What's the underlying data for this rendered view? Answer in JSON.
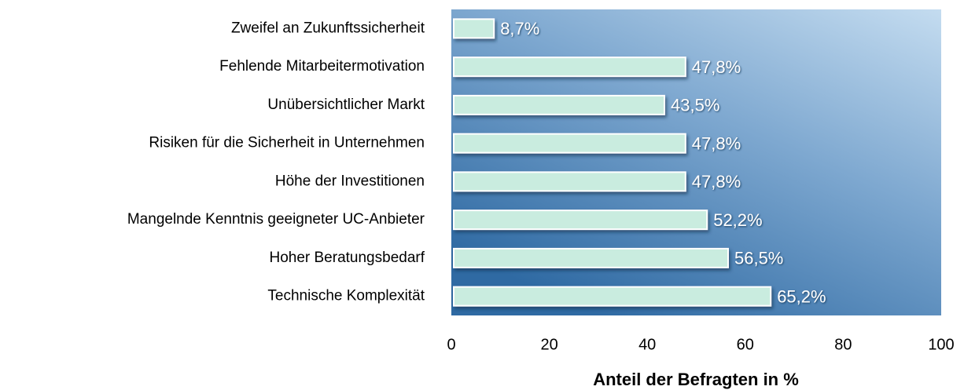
{
  "chart_data": {
    "type": "bar",
    "orientation": "horizontal",
    "xlabel": "Anteil der Befragten in %",
    "categories": [
      "Zweifel an Zukunftssicherheit",
      "Fehlende Mitarbeitermotivation",
      "Unübersichtlicher Markt",
      "Risiken für die Sicherheit in Unternehmen",
      "Höhe der Investitionen",
      "Mangelnde Kenntnis geeigneter UC-Anbieter",
      "Hoher Beratungsbedarf",
      "Technische Komplexität"
    ],
    "values": [
      8.7,
      47.8,
      43.5,
      47.8,
      47.8,
      52.2,
      56.5,
      65.2
    ],
    "value_labels": [
      "8,7%",
      "47,8%",
      "43,5%",
      "47,8%",
      "47,8%",
      "52,2%",
      "56,5%",
      "65,2%"
    ],
    "color": "#c9ecdf",
    "xlim": [
      0,
      100
    ],
    "xticks": [
      0,
      20,
      40,
      60,
      80,
      100
    ],
    "grid": false
  }
}
